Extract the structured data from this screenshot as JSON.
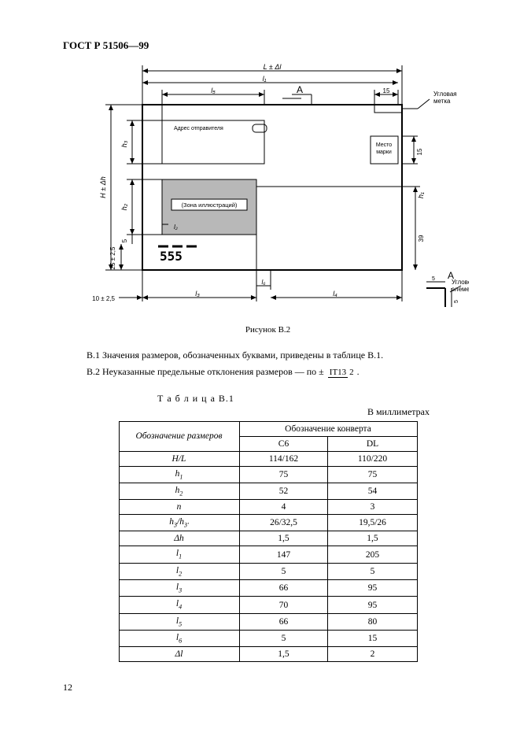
{
  "header": "ГОСТ Р 51506—99",
  "caption": "Рисунок В.2",
  "noteB1": "В.1  Значения размеров, обозначенных буквами, приведены в таблице В.1.",
  "noteB2_a": "В.2  Неуказанные предельные отклонения размеров — по ± ",
  "noteB2_frac_num": "IT13",
  "noteB2_frac_den": "2",
  "noteB2_b": ".",
  "tableTitle": "Т а б л и ц а   В.1",
  "tableUnits": "В миллиметрах",
  "tableHeadRow1Col1": "Обозначение размеров",
  "tableHeadRow1Col2": "Обозначение конверта",
  "tableHeadRow2Col1": "С6",
  "tableHeadRow2Col2": "DL",
  "rows": [
    {
      "k": "H/L",
      "c6": "114/162",
      "dl": "110/220"
    },
    {
      "k": "h1",
      "c6": "75",
      "dl": "75"
    },
    {
      "k": "h2",
      "c6": "52",
      "dl": "54"
    },
    {
      "k": "n",
      "c6": "4",
      "dl": "3"
    },
    {
      "k": "h3/h3'",
      "c6": "26/32,5",
      "dl": "19,5/26"
    },
    {
      "k": "Δh",
      "c6": "1,5",
      "dl": "1,5"
    },
    {
      "k": "l1",
      "c6": "147",
      "dl": "205"
    },
    {
      "k": "l2",
      "c6": "5",
      "dl": "5"
    },
    {
      "k": "l3",
      "c6": "66",
      "dl": "95"
    },
    {
      "k": "l4",
      "c6": "70",
      "dl": "95"
    },
    {
      "k": "l5",
      "c6": "66",
      "dl": "80"
    },
    {
      "k": "l6",
      "c6": "5",
      "dl": "15"
    },
    {
      "k": "Δl",
      "c6": "1,5",
      "dl": "2"
    }
  ],
  "pagenum": "12",
  "diagram": {
    "labels": {
      "LdL": "L ± Δl",
      "l1": "l₁",
      "l5": "l₅",
      "A": "А",
      "fifteen_top": "15",
      "corner_label": "Угловая\nметка",
      "sender": "Адрес отправителя",
      "stamp": "Место\nмарки",
      "fifteen_side": "15",
      "illustrations": "(Зона иллюстраций)",
      "l2": "l₂",
      "h3": "h₃",
      "HdH": "H ± Δh",
      "h2": "h₂",
      "five_v": "5",
      "twentyfive": "25 ± 2,5",
      "thirtynine": "39",
      "h1": "h₁",
      "barcode": "555",
      "l6": "l₆",
      "ten": "10 ± 2,5",
      "l3": "l₃",
      "l4": "l₄",
      "corner_elem_A": "А",
      "corner_elem": "Угловой\nэлемент",
      "five_a": "5",
      "five_b": "5"
    }
  }
}
